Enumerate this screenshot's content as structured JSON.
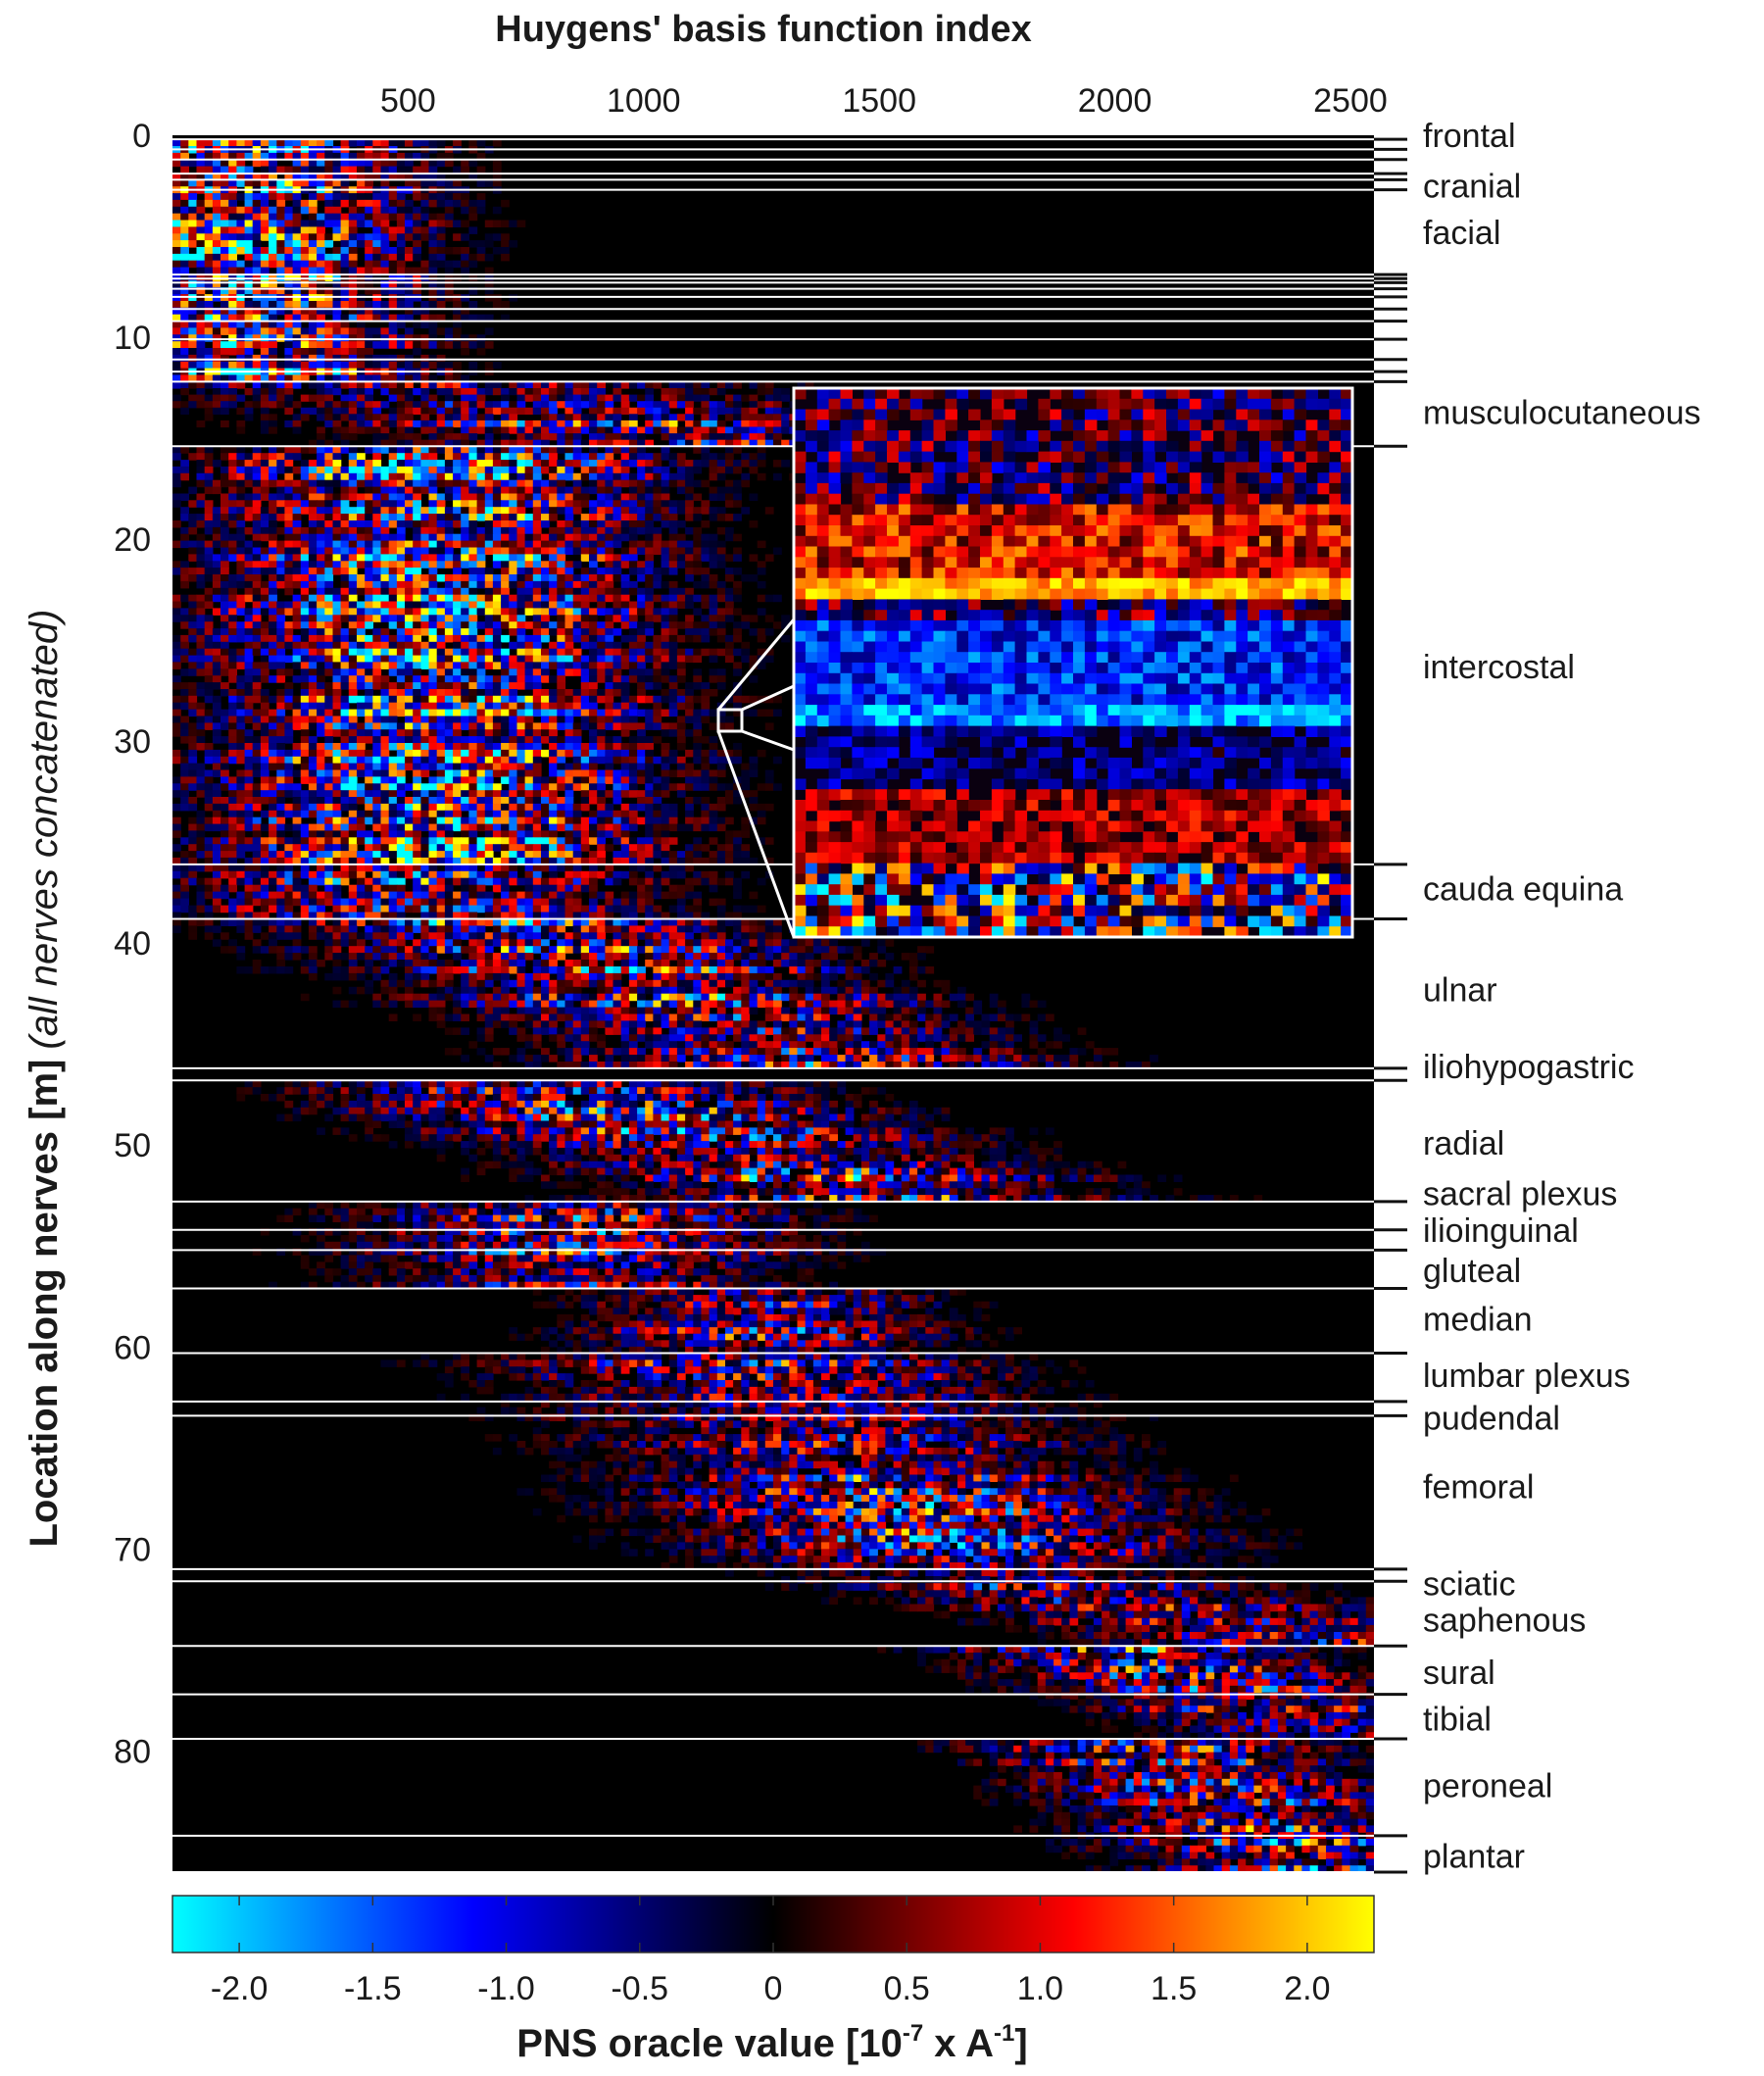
{
  "chart_data": {
    "type": "heatmap",
    "title": "Huygens' basis function index",
    "xlabel": "Huygens' basis function index",
    "ylabel": "Location along nerves [m]",
    "ylabel_note": "(all nerves concatenated)",
    "xlim": [
      0,
      2550
    ],
    "ylim": [
      0,
      86
    ],
    "x_ticks": [
      {
        "value": 500,
        "label": "500"
      },
      {
        "value": 1000,
        "label": "1000"
      },
      {
        "value": 1500,
        "label": "1500"
      },
      {
        "value": 2000,
        "label": "2000"
      },
      {
        "value": 2500,
        "label": "2500"
      }
    ],
    "y_ticks": [
      {
        "value": 0,
        "label": "0"
      },
      {
        "value": 10,
        "label": "10"
      },
      {
        "value": 20,
        "label": "20"
      },
      {
        "value": 30,
        "label": "30"
      },
      {
        "value": 40,
        "label": "40"
      },
      {
        "value": 50,
        "label": "50"
      },
      {
        "value": 60,
        "label": "60"
      },
      {
        "value": 70,
        "label": "70"
      },
      {
        "value": 80,
        "label": "80"
      }
    ],
    "boundaries": [
      0.2,
      0.7,
      1.2,
      1.9,
      2.2,
      2.7,
      6.9,
      7.1,
      7.3,
      7.6,
      8.0,
      8.6,
      9.2,
      10.1,
      11.1,
      11.7,
      12.2,
      15.4,
      36.1,
      38.8,
      46.2,
      46.8,
      52.8,
      54.2,
      55.2,
      57.1,
      60.3,
      62.7,
      63.4,
      71.0,
      71.6,
      74.8,
      77.2,
      79.4,
      84.2,
      86.0
    ],
    "nerves": [
      {
        "name": "frontal",
        "label_y": 0.0
      },
      {
        "name": "cranial",
        "label_y": 2.5
      },
      {
        "name": "facial",
        "label_y": 4.8
      },
      {
        "name": "musculocutaneous",
        "label_y": 13.7
      },
      {
        "name": "intercostal",
        "label_y": 26.3
      },
      {
        "name": "cauda equina",
        "label_y": 37.3
      },
      {
        "name": "ulnar",
        "label_y": 42.3
      },
      {
        "name": "iliohypogastric",
        "label_y": 46.1
      },
      {
        "name": "radial",
        "label_y": 49.9
      },
      {
        "name": "sacral plexus",
        "label_y": 52.4
      },
      {
        "name": "ilioinguinal",
        "label_y": 54.2
      },
      {
        "name": "gluteal",
        "label_y": 56.2
      },
      {
        "name": "median",
        "label_y": 58.6
      },
      {
        "name": "lumbar plexus",
        "label_y": 61.4
      },
      {
        "name": "pudendal",
        "label_y": 63.5
      },
      {
        "name": "femoral",
        "label_y": 66.9
      },
      {
        "name": "sciatic",
        "label_y": 71.7
      },
      {
        "name": "saphenous",
        "label_y": 73.5
      },
      {
        "name": "sural",
        "label_y": 76.1
      },
      {
        "name": "tibial",
        "label_y": 78.4
      },
      {
        "name": "peroneal",
        "label_y": 81.7
      },
      {
        "name": "plantar",
        "label_y": 85.2
      }
    ],
    "bands": [
      {
        "y0": 0.2,
        "y1": 12.2,
        "center": 150,
        "spread": 500,
        "amp": 1.0
      },
      {
        "y0": 12.2,
        "y1": 15.4,
        "center": 500,
        "spread": 900,
        "amp": 0.7,
        "slope": 800
      },
      {
        "y0": 15.4,
        "y1": 36.1,
        "center": 550,
        "spread": 650,
        "amp": 0.95
      },
      {
        "y0": 36.1,
        "y1": 38.8,
        "center": 500,
        "spread": 700,
        "amp": 0.7
      },
      {
        "y0": 38.8,
        "y1": 46.2,
        "center": 700,
        "spread": 700,
        "amp": 0.75,
        "slope": 700
      },
      {
        "y0": 46.8,
        "y1": 52.8,
        "center": 750,
        "spread": 700,
        "amp": 0.75,
        "slope": 800
      },
      {
        "y0": 52.8,
        "y1": 57.1,
        "center": 850,
        "spread": 600,
        "amp": 0.7
      },
      {
        "y0": 57.1,
        "y1": 60.3,
        "center": 1250,
        "spread": 500,
        "amp": 0.65
      },
      {
        "y0": 60.3,
        "y1": 71.0,
        "center": 1200,
        "spread": 700,
        "amp": 0.7,
        "slope": 500
      },
      {
        "y0": 71.0,
        "y1": 74.8,
        "center": 1700,
        "spread": 600,
        "amp": 0.6,
        "slope": 800
      },
      {
        "y0": 74.8,
        "y1": 79.4,
        "center": 2000,
        "spread": 500,
        "amp": 0.65,
        "slope": 500
      },
      {
        "y0": 79.4,
        "y1": 86.0,
        "center": 2050,
        "spread": 500,
        "amp": 0.7,
        "slope": 400
      }
    ],
    "inset": {
      "description": "zoomed region of intercostal band",
      "source_x": [
        1130,
        1180
      ],
      "source_y": [
        28.9,
        30.1
      ]
    },
    "colorbar": {
      "label": "PNS oracle value [10",
      "label_exp": "-7",
      "label_mid": " x A",
      "label_exp2": "-1",
      "label_end": "]",
      "range": [
        -2.25,
        2.25
      ],
      "ticks": [
        {
          "value": -2.0,
          "label": "-2.0"
        },
        {
          "value": -1.5,
          "label": "-1.5"
        },
        {
          "value": -1.0,
          "label": "-1.0"
        },
        {
          "value": -0.5,
          "label": "-0.5"
        },
        {
          "value": 0,
          "label": "0"
        },
        {
          "value": 0.5,
          "label": "0.5"
        },
        {
          "value": 1.0,
          "label": "1.0"
        },
        {
          "value": 1.5,
          "label": "1.5"
        },
        {
          "value": 2.0,
          "label": "2.0"
        }
      ],
      "colors": [
        "#00ffff",
        "#0000ff",
        "#000000",
        "#ff0000",
        "#ff8000",
        "#ffff00"
      ]
    }
  }
}
